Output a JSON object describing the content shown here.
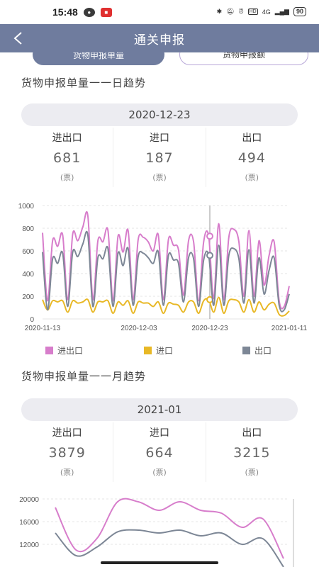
{
  "status": {
    "time": "15:48",
    "network": "4G",
    "battery": "90"
  },
  "header": {
    "title": "通关申报",
    "back_label": "<"
  },
  "tabs": [
    {
      "label": "货物申报单量"
    },
    {
      "label": "货物申报额"
    }
  ],
  "colors": {
    "header_bg": "#6f7c9e",
    "active_tab": "#6f7c9e",
    "inactive_border": "#b8a8d8",
    "import_export": "#d77dcb",
    "import": "#e8b826",
    "export": "#7d8796"
  },
  "legend": [
    "进出口",
    "进口",
    "出口"
  ],
  "daily": {
    "title": "货物申报单量一一日趋势",
    "date": "2020-12-23",
    "stats": [
      {
        "label": "进出口",
        "value": "681",
        "unit": "(票)"
      },
      {
        "label": "进口",
        "value": "187",
        "unit": "(票)"
      },
      {
        "label": "出口",
        "value": "494",
        "unit": "(票)"
      }
    ]
  },
  "monthly": {
    "title": "货物申报单量一一月趋势",
    "date": "2021-01",
    "stats": [
      {
        "label": "进出口",
        "value": "3879",
        "unit": "(票)"
      },
      {
        "label": "进口",
        "value": "664",
        "unit": "(票)"
      },
      {
        "label": "出口",
        "value": "3215",
        "unit": "(票)"
      }
    ]
  },
  "chart_data": [
    {
      "type": "line",
      "x_ticks": [
        "2020-11-13",
        "2020-12-03",
        "2020-12-23",
        "2021-01-11"
      ],
      "y_ticks": [
        0,
        200,
        400,
        600,
        800,
        1000
      ],
      "ylim": [
        0,
        1000
      ],
      "grid": true,
      "legend_position": "bottom",
      "highlight_x": "2020-12-23",
      "series": [
        {
          "name": "进出口",
          "values": [
            760,
            160,
            690,
            640,
            740,
            170,
            750,
            690,
            810,
            910,
            170,
            690,
            680,
            780,
            160,
            730,
            590,
            780,
            170,
            700,
            720,
            680,
            600,
            740,
            170,
            700,
            650,
            610,
            210,
            690,
            680,
            160,
            680,
            730,
            180,
            840,
            170,
            720,
            790,
            680,
            200,
            780,
            200,
            690,
            300,
            560,
            680,
            160,
            110,
            290
          ]
        },
        {
          "name": "进口",
          "values": [
            170,
            80,
            160,
            150,
            160,
            60,
            160,
            140,
            150,
            170,
            60,
            150,
            150,
            160,
            50,
            150,
            120,
            160,
            50,
            150,
            140,
            140,
            110,
            150,
            50,
            140,
            130,
            120,
            60,
            150,
            150,
            50,
            160,
            170,
            60,
            190,
            50,
            160,
            170,
            150,
            60,
            170,
            60,
            150,
            80,
            130,
            140,
            40,
            30,
            70
          ]
        },
        {
          "name": "出口",
          "values": [
            590,
            80,
            530,
            490,
            580,
            110,
            590,
            550,
            660,
            740,
            110,
            540,
            530,
            620,
            110,
            580,
            470,
            620,
            120,
            550,
            580,
            540,
            490,
            590,
            120,
            560,
            520,
            490,
            150,
            540,
            530,
            110,
            520,
            560,
            120,
            650,
            120,
            560,
            620,
            530,
            140,
            610,
            140,
            540,
            220,
            430,
            540,
            120,
            80,
            220
          ]
        }
      ]
    },
    {
      "type": "line",
      "y_ticks": [
        12000,
        16000,
        20000
      ],
      "grid": true,
      "series": [
        {
          "name": "进出口",
          "values": [
            18500,
            11000,
            13000,
            19500,
            19500,
            18000,
            19500,
            18000,
            17500,
            15000,
            16500,
            9500
          ]
        },
        {
          "name": "出口",
          "values": [
            14000,
            10000,
            11500,
            14200,
            14500,
            14000,
            14500,
            13500,
            14000,
            12000,
            13000,
            8000
          ]
        }
      ]
    }
  ]
}
